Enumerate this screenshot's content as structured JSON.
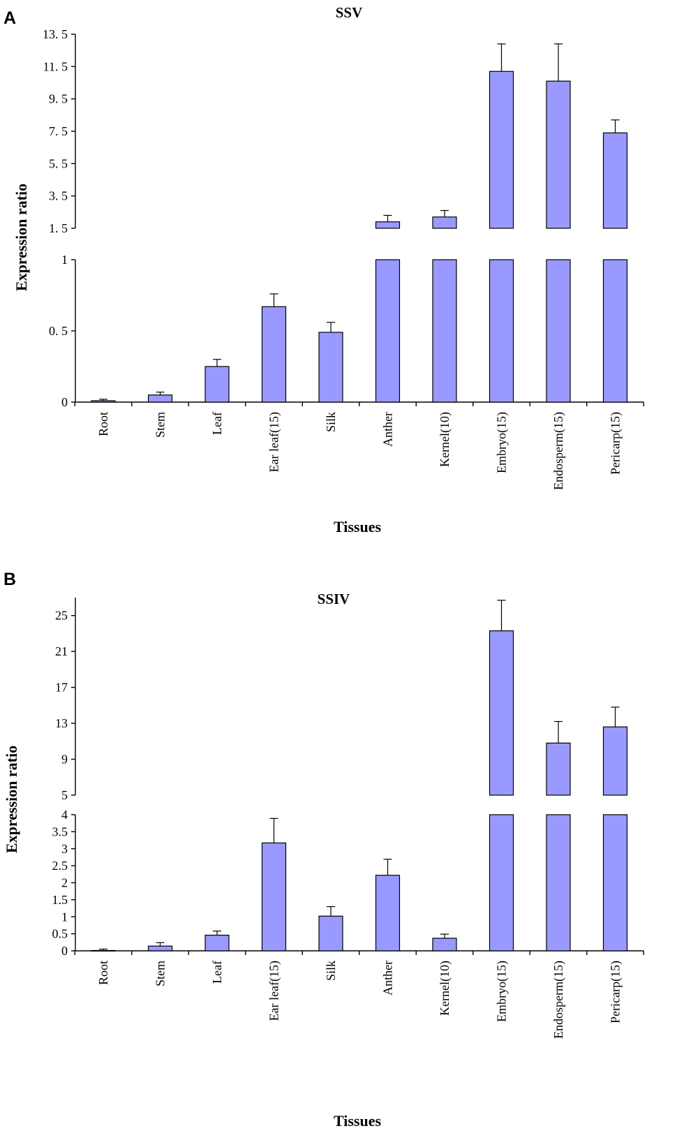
{
  "figure": {
    "panels": [
      {
        "letter": "A"
      },
      {
        "letter": "B"
      }
    ]
  },
  "chart_data": [
    {
      "type": "bar",
      "title": "SSV",
      "xlabel": "Tissues",
      "ylabel": "Expression ratio",
      "axis_break": {
        "lower_range": [
          0,
          1
        ],
        "upper_range": [
          1.5,
          13.5
        ]
      },
      "yticks_lower": [
        "0",
        "0. 5",
        "1"
      ],
      "yticks_lower_values": [
        0,
        0.5,
        1
      ],
      "yticks_upper": [
        "1. 5",
        "3. 5",
        "5. 5",
        "7. 5",
        "9. 5",
        "11. 5",
        "13. 5"
      ],
      "yticks_upper_values": [
        1.5,
        3.5,
        5.5,
        7.5,
        9.5,
        11.5,
        13.5
      ],
      "categories": [
        "Root",
        "Stem",
        "Leaf",
        "Ear leaf(15)",
        "Silk",
        "Anther",
        "Kernel(10)",
        "Embryo(15)",
        "Endosperm(15)",
        "Pericarp(15)"
      ],
      "values": [
        0.01,
        0.05,
        0.25,
        0.67,
        0.49,
        1.9,
        2.2,
        11.2,
        10.6,
        7.4
      ],
      "errors": [
        0.01,
        0.02,
        0.05,
        0.09,
        0.07,
        0.4,
        0.4,
        1.7,
        2.3,
        0.8
      ]
    },
    {
      "type": "bar",
      "title": "SSIV",
      "xlabel": "Tissues",
      "ylabel": "Expression ratio",
      "axis_break": {
        "lower_range": [
          0,
          4
        ],
        "upper_range": [
          5,
          27
        ]
      },
      "yticks_lower": [
        "0",
        "0.5",
        "1",
        "1.5",
        "2",
        "2.5",
        "3",
        "3.5",
        "4"
      ],
      "yticks_lower_values": [
        0,
        0.5,
        1,
        1.5,
        2,
        2.5,
        3,
        3.5,
        4
      ],
      "yticks_upper": [
        "5",
        "9",
        "13",
        "17",
        "21",
        "25"
      ],
      "yticks_upper_values": [
        5,
        9,
        13,
        17,
        21,
        25
      ],
      "categories": [
        "Root",
        "Stem",
        "Leaf",
        "Ear leaf(15)",
        "Silk",
        "Anther",
        "Kernel(10)",
        "Embryo(15)",
        "Endosperm(15)",
        "Pericarp(15)"
      ],
      "values": [
        0.01,
        0.14,
        0.46,
        3.17,
        1.02,
        2.22,
        0.37,
        23.3,
        10.8,
        12.6
      ],
      "errors": [
        0.04,
        0.1,
        0.12,
        0.72,
        0.28,
        0.47,
        0.12,
        3.4,
        2.4,
        2.2
      ]
    }
  ]
}
